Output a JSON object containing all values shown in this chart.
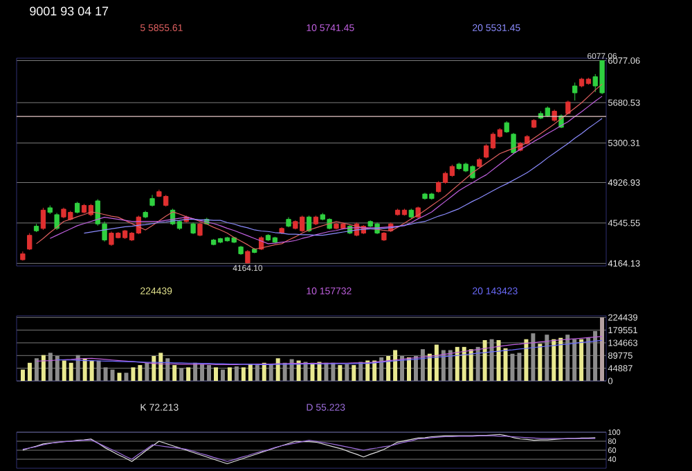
{
  "chart_data": [
    {
      "type": "candlestick",
      "title": "9001 93 04 17",
      "categories": [
        null,
        null,
        null,
        null,
        null,
        null,
        null,
        null,
        null,
        null,
        null,
        null,
        null,
        null,
        null,
        null,
        null,
        null,
        null,
        null,
        null,
        null,
        null,
        null,
        null,
        null,
        null,
        null,
        null,
        null,
        null,
        null,
        null,
        null,
        null,
        null,
        null,
        null,
        null,
        null,
        null,
        null,
        null,
        null,
        null,
        null,
        null,
        null,
        null,
        null,
        null,
        null,
        null,
        null,
        null,
        null,
        null,
        null,
        null,
        null,
        null,
        null,
        null,
        null,
        null,
        null,
        null,
        null,
        null,
        null,
        null,
        null,
        null,
        null,
        null,
        null,
        null,
        null,
        null,
        null,
        null,
        null,
        null,
        null,
        null,
        null
      ],
      "ohlc": [
        [
          4199,
          4277,
          4190,
          4255
        ],
        [
          4299,
          4450,
          4290,
          4429
        ],
        [
          4515,
          4537,
          4460,
          4472
        ],
        [
          4494,
          4689,
          4480,
          4667
        ],
        [
          4689,
          4711,
          4630,
          4646
        ],
        [
          4624,
          4640,
          4480,
          4494
        ],
        [
          4602,
          4690,
          4590,
          4676
        ],
        [
          4580,
          4660,
          4570,
          4646
        ],
        [
          4732,
          4745,
          4635,
          4646
        ],
        [
          4646,
          4725,
          4635,
          4711
        ],
        [
          4624,
          4725,
          4610,
          4711
        ],
        [
          4754,
          4770,
          4520,
          4537
        ],
        [
          4537,
          4560,
          4370,
          4385
        ],
        [
          4342,
          4465,
          4330,
          4450
        ],
        [
          4407,
          4460,
          4400,
          4450
        ],
        [
          4407,
          4480,
          4395,
          4472
        ],
        [
          4385,
          4460,
          4375,
          4450
        ],
        [
          4450,
          4615,
          4440,
          4602
        ],
        [
          4646,
          4660,
          4590,
          4602
        ],
        [
          4776,
          4810,
          4700,
          4711
        ],
        [
          4797,
          4860,
          4790,
          4841
        ],
        [
          4711,
          4810,
          4700,
          4797
        ],
        [
          4667,
          4680,
          4525,
          4537
        ],
        [
          4559,
          4570,
          4480,
          4494
        ],
        [
          4559,
          4615,
          4550,
          4602
        ],
        [
          4537,
          4550,
          4440,
          4450
        ],
        [
          4429,
          4550,
          4420,
          4537
        ],
        [
          4580,
          4595,
          4530,
          4537
        ],
        [
          4385,
          4395,
          4335,
          4342
        ],
        [
          4398,
          4405,
          4355,
          4364
        ],
        [
          4407,
          4415,
          4370,
          4377
        ],
        [
          4407,
          4415,
          4355,
          4364
        ],
        [
          4320,
          4330,
          4245,
          4255
        ],
        [
          4169,
          4290,
          4164.1,
          4277
        ],
        [
          4299,
          4310,
          4260,
          4268
        ],
        [
          4299,
          4420,
          4290,
          4407
        ],
        [
          4429,
          4440,
          4375,
          4385
        ],
        [
          4407,
          4415,
          4355,
          4364
        ],
        [
          4450,
          4505,
          4440,
          4494
        ],
        [
          4580,
          4600,
          4505,
          4515
        ],
        [
          4494,
          4570,
          4485,
          4559
        ],
        [
          4472,
          4615,
          4460,
          4602
        ],
        [
          4602,
          4615,
          4460,
          4472
        ],
        [
          4537,
          4615,
          4525,
          4602
        ],
        [
          4624,
          4640,
          4570,
          4580
        ],
        [
          4580,
          4590,
          4485,
          4494
        ],
        [
          4494,
          4550,
          4485,
          4537
        ],
        [
          4494,
          4550,
          4485,
          4537
        ],
        [
          4515,
          4525,
          4440,
          4450
        ],
        [
          4429,
          4550,
          4420,
          4537
        ],
        [
          4450,
          4525,
          4440,
          4515
        ],
        [
          4559,
          4570,
          4505,
          4515
        ],
        [
          4537,
          4550,
          4440,
          4450
        ],
        [
          4385,
          4460,
          4375,
          4450
        ],
        [
          4472,
          4550,
          4460,
          4537
        ],
        [
          4624,
          4680,
          4615,
          4667
        ],
        [
          4624,
          4680,
          4615,
          4667
        ],
        [
          4667,
          4680,
          4590,
          4602
        ],
        [
          4602,
          4700,
          4590,
          4689
        ],
        [
          4819,
          4830,
          4765,
          4776
        ],
        [
          4819,
          4830,
          4765,
          4776
        ],
        [
          4841,
          4940,
          4830,
          4928
        ],
        [
          4928,
          5030,
          4915,
          5014
        ],
        [
          4993,
          5095,
          4980,
          5079
        ],
        [
          5101,
          5115,
          5045,
          5058
        ],
        [
          5101,
          5115,
          5025,
          5036
        ],
        [
          5079,
          5090,
          4960,
          4971
        ],
        [
          5079,
          5160,
          5070,
          5144
        ],
        [
          5166,
          5290,
          5155,
          5274
        ],
        [
          5253,
          5400,
          5240,
          5383
        ],
        [
          5361,
          5440,
          5350,
          5426
        ],
        [
          5491,
          5505,
          5395,
          5405
        ],
        [
          5383,
          5395,
          5195,
          5209
        ],
        [
          5231,
          5310,
          5220,
          5296
        ],
        [
          5296,
          5375,
          5285,
          5361
        ],
        [
          5448,
          5525,
          5440,
          5513
        ],
        [
          5578,
          5600,
          5525,
          5535
        ],
        [
          5630,
          5645,
          5545,
          5556
        ],
        [
          5513,
          5615,
          5500,
          5600
        ],
        [
          5556,
          5570,
          5440,
          5448
        ],
        [
          5578,
          5700,
          5570,
          5687
        ],
        [
          5838,
          5870,
          5700,
          5773
        ],
        [
          5838,
          5915,
          5825,
          5903
        ],
        [
          5860,
          5915,
          5850,
          5903
        ],
        [
          5925,
          5950,
          5780,
          5838
        ],
        [
          6077.06,
          6077.06,
          5760,
          5773
        ]
      ],
      "colors": [
        "#e03030",
        "#e03030",
        "#30d040",
        "#e03030",
        "#30d040",
        "#30d040",
        "#e03030",
        "#e03030",
        "#30d040",
        "#e03030",
        "#e03030",
        "#30d040",
        "#30d040",
        "#e03030",
        "#e03030",
        "#e03030",
        "#e03030",
        "#e03030",
        "#30d040",
        "#30d040",
        "#e03030",
        "#e03030",
        "#30d040",
        "#30d040",
        "#e03030",
        "#30d040",
        "#e03030",
        "#30d040",
        "#30d040",
        "#30d040",
        "#30d040",
        "#30d040",
        "#30d040",
        "#e03030",
        "#30d040",
        "#e03030",
        "#30d040",
        "#30d040",
        "#e03030",
        "#30d040",
        "#e03030",
        "#e03030",
        "#30d040",
        "#e03030",
        "#30d040",
        "#30d040",
        "#e03030",
        "#e03030",
        "#30d040",
        "#e03030",
        "#e03030",
        "#30d040",
        "#30d040",
        "#e03030",
        "#e03030",
        "#e03030",
        "#e03030",
        "#30d040",
        "#e03030",
        "#30d040",
        "#30d040",
        "#e03030",
        "#e03030",
        "#e03030",
        "#30d040",
        "#30d040",
        "#30d040",
        "#e03030",
        "#e03030",
        "#e03030",
        "#e03030",
        "#30d040",
        "#30d040",
        "#e03030",
        "#e03030",
        "#e03030",
        "#30d040",
        "#30d040",
        "#e03030",
        "#30d040",
        "#e03030",
        "#30d040",
        "#e03030",
        "#e03030",
        "#30d040",
        "#30d040"
      ],
      "ylim": [
        4140,
        6100
      ],
      "yticks": [
        4164.13,
        4545.55,
        4926.93,
        5300.31,
        5680.53,
        6077.06
      ],
      "tick_labels": "y",
      "grid": "y",
      "ref_lines": [
        {
          "axis": "y",
          "value": 5550,
          "color": "#e8c8c8"
        }
      ],
      "annotations": [
        {
          "text": "6077.06",
          "y": 6077.06
        },
        {
          "text": "4164.10",
          "y": 4164.1
        }
      ],
      "series": [
        {
          "name": "5 5855.61",
          "type": "line",
          "color": "#e06060",
          "values": [
            null,
            null,
            4350,
            4400,
            4455,
            4505,
            4560,
            4580,
            4605,
            4625,
            4650,
            4640,
            4625,
            4610,
            4600,
            4570,
            4540,
            4510,
            4480,
            4520,
            4565,
            4610,
            4650,
            4630,
            4605,
            4585,
            4560,
            4535,
            4505,
            4480,
            4450,
            4410,
            4375,
            4340,
            4300,
            4310,
            4325,
            4340,
            4350,
            4385,
            4415,
            4450,
            4480,
            4500,
            4520,
            4540,
            4560,
            4545,
            4530,
            4515,
            4500,
            4490,
            4485,
            4475,
            4470,
            4505,
            4545,
            4585,
            4620,
            4665,
            4710,
            4755,
            4800,
            4855,
            4910,
            4965,
            5020,
            5065,
            5110,
            5155,
            5200,
            5225,
            5250,
            5275,
            5300,
            5345,
            5390,
            5435,
            5480,
            5530,
            5580,
            5630,
            5680,
            5740,
            5800,
            5855.61
          ]
        },
        {
          "name": "10 5741.45",
          "type": "line",
          "color": "#c060e0",
          "values": [
            null,
            null,
            null,
            null,
            4400,
            4430,
            4460,
            4490,
            4520,
            4540,
            4560,
            4580,
            4600,
            4590,
            4580,
            4570,
            4560,
            4560,
            4560,
            4560,
            4560,
            4570,
            4580,
            4590,
            4600,
            4585,
            4570,
            4555,
            4540,
            4520,
            4495,
            4475,
            4450,
            4425,
            4400,
            4375,
            4350,
            4355,
            4365,
            4370,
            4380,
            4400,
            4415,
            4435,
            4450,
            4465,
            4475,
            4490,
            4500,
            4500,
            4500,
            4500,
            4500,
            4505,
            4510,
            4515,
            4520,
            4550,
            4585,
            4615,
            4650,
            4700,
            4750,
            4800,
            4850,
            4890,
            4925,
            4965,
            5000,
            5050,
            5100,
            5150,
            5200,
            5240,
            5275,
            5315,
            5350,
            5390,
            5425,
            5465,
            5500,
            5550,
            5595,
            5645,
            5695,
            5741.45
          ]
        },
        {
          "name": "20 5531.45",
          "type": "line",
          "color": "#8c8cff",
          "values": [
            null,
            null,
            null,
            null,
            null,
            null,
            null,
            null,
            null,
            4450,
            4460,
            4470,
            4480,
            4490,
            4500,
            4510,
            4515,
            4525,
            4530,
            4540,
            4550,
            4555,
            4565,
            4570,
            4580,
            4580,
            4575,
            4575,
            4570,
            4570,
            4550,
            4535,
            4515,
            4500,
            4480,
            4470,
            4465,
            4455,
            4450,
            4440,
            4440,
            4435,
            4435,
            4430,
            4430,
            4440,
            4450,
            4460,
            4470,
            4480,
            4485,
            4490,
            4490,
            4495,
            4500,
            4510,
            4525,
            4535,
            4550,
            4560,
            4585,
            4610,
            4630,
            4655,
            4680,
            4715,
            4750,
            4780,
            4815,
            4850,
            4885,
            4915,
            4950,
            4985,
            5020,
            5065,
            5110,
            5160,
            5205,
            5250,
            5295,
            5345,
            5390,
            5440,
            5485,
            5531.45
          ]
        }
      ]
    },
    {
      "type": "bar",
      "categories": [
        null,
        null,
        null,
        null,
        null,
        null,
        null,
        null,
        null,
        null,
        null,
        null,
        null,
        null,
        null,
        null,
        null,
        null,
        null,
        null,
        null,
        null,
        null,
        null,
        null,
        null,
        null,
        null,
        null,
        null,
        null,
        null,
        null,
        null,
        null,
        null,
        null,
        null,
        null,
        null,
        null,
        null,
        null,
        null,
        null,
        null,
        null,
        null,
        null,
        null,
        null,
        null,
        null,
        null,
        null,
        null,
        null,
        null,
        null,
        null,
        null,
        null,
        null,
        null,
        null,
        null,
        null,
        null,
        null,
        null,
        null,
        null,
        null,
        null,
        null,
        null,
        null,
        null,
        null,
        null,
        null,
        null,
        null,
        null,
        null
      ],
      "ylim": [
        0,
        230000
      ],
      "yticks": [
        0,
        44887,
        89775,
        134663,
        179551,
        224439
      ],
      "tick_labels": "y",
      "grid": "y",
      "series": [
        {
          "name": "224439",
          "type": "bar",
          "values": [
            40075,
            64120,
            80150,
            91371,
            99386,
            88165,
            72135,
            64120,
            91371,
            80150,
            72135,
            72135,
            48090,
            40075,
            28854,
            28854,
            48090,
            56105,
            64120,
            88165,
            99386,
            80150,
            56105,
            44884,
            48090,
            64120,
            59311,
            56105,
            48090,
            40075,
            48090,
            51296,
            48090,
            59311,
            56105,
            64120,
            59311,
            80150,
            64120,
            76944,
            72135,
            67326,
            64120,
            67326,
            64120,
            64120,
            56105,
            59311,
            56105,
            67326,
            72135,
            72135,
            83356,
            88165,
            109004,
            88165,
            83356,
            88165,
            112210,
            96180,
            128240,
            109004,
            109004,
            120225,
            120225,
            112210,
            120225,
            144270,
            147476,
            144270,
            115416,
            96180,
            99386,
            147476,
            168315,
            131446,
            163506,
            147476,
            152285,
            163506,
            147476,
            147476,
            152285,
            176330,
            224439
          ],
          "colors": [
            "#e8e890",
            "#e8e890",
            "#8c8c8c",
            "#e8e890",
            "#8c8c8c",
            "#8c8c8c",
            "#e8e890",
            "#e8e890",
            "#8c8c8c",
            "#e8e890",
            "#e8e890",
            "#8c8c8c",
            "#8c8c8c",
            "#8c8c8c",
            "#e8e890",
            "#8c8c8c",
            "#e8e890",
            "#e8e890",
            "#8c8c8c",
            "#e8e890",
            "#e8e890",
            "#8c8c8c",
            "#e8e890",
            "#8c8c8c",
            "#e8e890",
            "#8c8c8c",
            "#8c8c8c",
            "#8c8c8c",
            "#e8e890",
            "#8c8c8c",
            "#e8e890",
            "#8c8c8c",
            "#e8e890",
            "#e8e890",
            "#8c8c8c",
            "#e8e890",
            "#8c8c8c",
            "#e8e890",
            "#8c8c8c",
            "#8c8c8c",
            "#e8e890",
            "#8c8c8c",
            "#e8e890",
            "#e8e890",
            "#8c8c8c",
            "#8c8c8c",
            "#e8e890",
            "#8c8c8c",
            "#e8e890",
            "#8c8c8c",
            "#e8e890",
            "#e8e890",
            "#8c8c8c",
            "#e8e890",
            "#e8e890",
            "#8c8c8c",
            "#e8e890",
            "#8c8c8c",
            "#8c8c8c",
            "#e8e890",
            "#e8e890",
            "#8c8c8c",
            "#8c8c8c",
            "#e8e890",
            "#e8e890",
            "#e8e890",
            "#8c8c8c",
            "#e8e890",
            "#8c8c8c",
            "#e8e890",
            "#e8e890",
            "#8c8c8c",
            "#8c8c8c",
            "#e8e890",
            "#8c8c8c",
            "#e8e890",
            "#8c8c8c",
            "#e8e890",
            "#e8e890",
            "#8c8c8c",
            "#8c8c8c",
            "#e8e890",
            "#8c8c8c",
            "#8c8c8c",
            "#b4a0a0"
          ]
        },
        {
          "name": "10 157732",
          "type": "line",
          "color": "#c060e0",
          "values": [
            null,
            null,
            70000,
            71000,
            72000,
            74000,
            75000,
            76000,
            78000,
            79000,
            80000,
            78000,
            76000,
            74000,
            72000,
            70000,
            68000,
            66000,
            64000,
            62000,
            60000,
            60000,
            60000,
            59000,
            59000,
            59000,
            59000,
            59000,
            58000,
            58000,
            58000,
            58000,
            59000,
            59000,
            60000,
            60000,
            60000,
            61000,
            61000,
            62000,
            62000,
            62000,
            62000,
            63000,
            63000,
            63000,
            63000,
            63000,
            64000,
            64000,
            64000,
            67000,
            69000,
            72000,
            74000,
            77000,
            80000,
            82000,
            85000,
            87000,
            90000,
            94000,
            97000,
            101000,
            104000,
            108000,
            111000,
            115000,
            118000,
            122000,
            125000,
            128000,
            130000,
            133000,
            135000,
            138000,
            140000,
            143000,
            145000,
            147000,
            149000,
            151000,
            153000,
            155000,
            157732
          ]
        },
        {
          "name": "20 143423",
          "type": "line",
          "color": "#6c6cff",
          "values": [
            null,
            null,
            null,
            null,
            null,
            75000,
            74000,
            74000,
            73000,
            72000,
            72000,
            71000,
            70000,
            70000,
            69000,
            68000,
            68000,
            67000,
            66000,
            66000,
            65000,
            65000,
            64000,
            64000,
            63000,
            63000,
            62000,
            62000,
            61000,
            61000,
            60000,
            60000,
            59000,
            59000,
            58000,
            58000,
            58000,
            59000,
            59000,
            59000,
            59000,
            60000,
            60000,
            60000,
            60000,
            61000,
            61000,
            61000,
            61000,
            62000,
            62000,
            64000,
            66000,
            69000,
            71000,
            73000,
            75000,
            77000,
            79000,
            82000,
            84000,
            86000,
            88000,
            90000,
            93000,
            95000,
            98000,
            100000,
            103000,
            105000,
            108000,
            110000,
            113000,
            115000,
            118000,
            120000,
            123000,
            125000,
            128000,
            130000,
            133000,
            136000,
            138000,
            141000,
            143423
          ]
        }
      ]
    },
    {
      "type": "line",
      "categories": [
        null,
        null,
        null,
        null,
        null,
        null,
        null,
        null,
        null,
        null,
        null,
        null,
        null,
        null,
        null,
        null,
        null,
        null,
        null,
        null,
        null,
        null,
        null,
        null,
        null,
        null,
        null,
        null,
        null,
        null,
        null,
        null,
        null,
        null,
        null,
        null,
        null,
        null,
        null,
        null,
        null,
        null,
        null,
        null,
        null,
        null,
        null,
        null,
        null,
        null,
        null,
        null,
        null,
        null,
        null,
        null,
        null,
        null,
        null,
        null,
        null,
        null,
        null,
        null,
        null,
        null,
        null,
        null,
        null,
        null,
        null,
        null,
        null,
        null,
        null,
        null,
        null,
        null,
        null,
        null,
        null,
        null,
        null,
        null,
        null,
        null
      ],
      "ylim": [
        20,
        100
      ],
      "yticks": [
        40,
        60,
        80,
        100
      ],
      "tick_labels": "y",
      "grid": "y",
      "series": [
        {
          "name": "K 72.213",
          "color": "#e0e0e0",
          "values": [
            60,
            65,
            69,
            74,
            76,
            77,
            79,
            80,
            82,
            83,
            85,
            76,
            66,
            58,
            50,
            43,
            35,
            46,
            58,
            69,
            80,
            75,
            70,
            65,
            60,
            55,
            50,
            45,
            40,
            35,
            30,
            35,
            40,
            45,
            50,
            55,
            60,
            65,
            70,
            75,
            80,
            79,
            79,
            78,
            74,
            70,
            66,
            62,
            56,
            51,
            45,
            51,
            56,
            62,
            70,
            78,
            81,
            84,
            87,
            88,
            90,
            91,
            92,
            92,
            92,
            92,
            92,
            93,
            93,
            94,
            95,
            92,
            88,
            85,
            84,
            82,
            83,
            83,
            84,
            85,
            86,
            86,
            87,
            87,
            88,
            null
          ]
        },
        {
          "name": "D 55.223",
          "color": "#a070e0",
          "values": [
            62,
            65,
            68,
            72,
            75,
            78,
            79,
            80,
            81,
            82,
            83,
            76,
            69,
            62,
            55,
            47,
            40,
            51,
            61,
            72,
            70,
            68,
            66,
            64,
            62,
            58,
            53,
            49,
            44,
            40,
            35,
            39,
            44,
            48,
            53,
            57,
            61,
            66,
            70,
            73,
            76,
            79,
            82,
            80,
            77,
            75,
            72,
            69,
            66,
            63,
            60,
            63,
            65,
            68,
            70,
            74,
            78,
            81,
            85,
            86,
            88,
            89,
            90,
            90,
            91,
            91,
            91,
            92,
            92,
            92,
            91,
            91,
            90,
            89,
            88,
            87,
            86,
            86,
            86,
            86,
            86,
            86,
            86,
            86,
            86,
            null
          ]
        }
      ]
    }
  ]
}
